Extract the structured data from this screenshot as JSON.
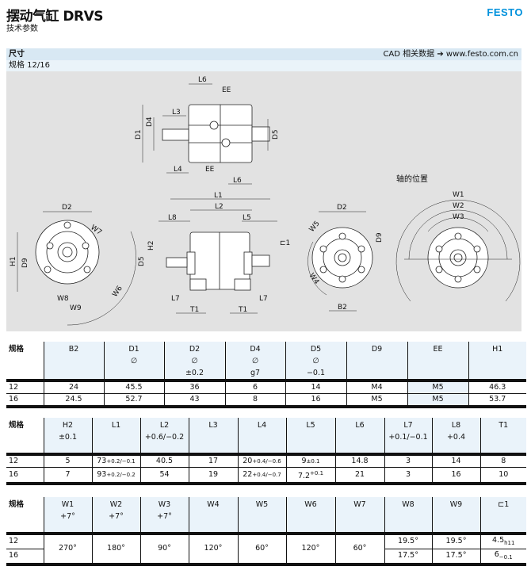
{
  "header": {
    "title": "摆动气缸 DRVS",
    "subtitle": "技术参数",
    "logo": "FESTO"
  },
  "section": {
    "title": "尺寸",
    "cad_label": "CAD 相关数据 ➔ www.festo.com.cn",
    "size_label": "规格 12/16"
  },
  "drawing": {
    "shaft_position_label": "轴的位置",
    "top": {
      "L6a": "L6",
      "EEa": "EE",
      "L3": "L3",
      "D4": "D4",
      "D1": "D1",
      "D5": "D5",
      "L4": "L4",
      "EEb": "EE",
      "L6b": "L6"
    },
    "front": {
      "D2": "D2",
      "W7": "W7",
      "H1": "H1",
      "D9": "D9",
      "W6": "W6",
      "W8": "W8",
      "W9": "W9"
    },
    "side": {
      "L1": "L1",
      "L2": "L2",
      "L8": "L8",
      "L5": "L5",
      "H2": "H2",
      "D5": "D5",
      "C1": "⊏1",
      "L7a": "L7",
      "T1a": "T1",
      "L7b": "L7",
      "T1b": "T1"
    },
    "rear": {
      "D2": "D2",
      "W5": "W5",
      "D9": "D9",
      "W4": "W4",
      "B2": "B2"
    },
    "pos": {
      "W1": "W1",
      "W2": "W2",
      "W3": "W3"
    }
  },
  "table1": {
    "headers": [
      [
        "规格"
      ],
      [
        "B2"
      ],
      [
        "D1",
        "∅"
      ],
      [
        "D2",
        "∅",
        "±0.2"
      ],
      [
        "D4",
        "∅",
        "g7"
      ],
      [
        "D5",
        "∅",
        "−0.1"
      ],
      [
        "D9"
      ],
      [
        "EE"
      ],
      [
        "H1"
      ]
    ],
    "rows": [
      [
        "12",
        "24",
        "45.5",
        "36",
        "6",
        "14",
        "M4",
        "M5",
        "46.3"
      ],
      [
        "16",
        "24.5",
        "52.7",
        "43",
        "8",
        "16",
        "M5",
        "M5",
        "53.7"
      ]
    ]
  },
  "table2": {
    "headers": [
      [
        "规格"
      ],
      [
        "H2",
        "±0.1"
      ],
      [
        "L1",
        ""
      ],
      [
        "L2",
        "+0.6/−0.2"
      ],
      [
        "L3",
        ""
      ],
      [
        "L4",
        ""
      ],
      [
        "L5",
        ""
      ],
      [
        "L6",
        ""
      ],
      [
        "L7",
        "+0.1/−0.1"
      ],
      [
        "L8",
        "+0.4"
      ],
      [
        "T1",
        ""
      ]
    ],
    "rows": [
      [
        {
          "v": "12"
        },
        {
          "v": "5"
        },
        {
          "v": "73",
          "t": "+0.2/−0.1"
        },
        {
          "v": "40.5"
        },
        {
          "v": "17"
        },
        {
          "v": "20",
          "t": "+0.4/−0.6"
        },
        {
          "v": "9",
          "t": "±0.1"
        },
        {
          "v": "14.8"
        },
        {
          "v": "3"
        },
        {
          "v": "14"
        },
        {
          "v": "8"
        }
      ],
      [
        {
          "v": "16"
        },
        {
          "v": "7"
        },
        {
          "v": "93",
          "t": "+0.2/−0.2"
        },
        {
          "v": "54"
        },
        {
          "v": "19"
        },
        {
          "v": "22",
          "t": "+0.4/−0.7"
        },
        {
          "v": "7.2",
          "sup": "+0.1"
        },
        {
          "v": "21"
        },
        {
          "v": "3"
        },
        {
          "v": "16"
        },
        {
          "v": "10"
        }
      ]
    ]
  },
  "table3": {
    "headers": [
      [
        "规格"
      ],
      [
        "W1",
        "+7°"
      ],
      [
        "W2",
        "+7°"
      ],
      [
        "W3",
        "+7°"
      ],
      [
        "W4",
        ""
      ],
      [
        "W5",
        ""
      ],
      [
        "W6",
        ""
      ],
      [
        "W7",
        ""
      ],
      [
        "W8",
        ""
      ],
      [
        "W9",
        ""
      ],
      [
        "⊏1",
        ""
      ]
    ],
    "sizes": [
      "12",
      "16"
    ],
    "shared": [
      "270°",
      "180°",
      "90°",
      "120°",
      "60°",
      "120°",
      "60°"
    ],
    "rows": [
      {
        "W8": "19.5°",
        "W9": "19.5°",
        "C1": "4.5",
        "C1_tol": "h11"
      },
      {
        "W8": "17.5°",
        "W9": "17.5°",
        "C1": "6",
        "C1_tol": "−0.1"
      }
    ]
  }
}
